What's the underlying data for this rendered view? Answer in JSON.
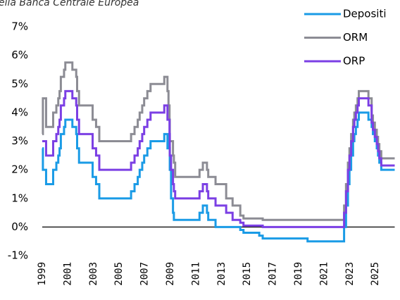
{
  "chart_data": {
    "type": "step",
    "title": "ella Banca Centrale Europea",
    "x": [
      1999.0,
      1999.05,
      1999.3,
      1999.85,
      2000.1,
      2000.25,
      2000.35,
      2000.45,
      2000.7,
      2000.8,
      2001.35,
      2001.65,
      2001.72,
      2001.87,
      2002.93,
      2003.2,
      2003.45,
      2005.93,
      2006.2,
      2006.45,
      2006.6,
      2006.8,
      2006.95,
      2007.2,
      2007.45,
      2008.52,
      2008.77,
      2008.85,
      2008.93,
      2008.95,
      2009.05,
      2009.2,
      2009.27,
      2009.37,
      2011.27,
      2011.53,
      2011.85,
      2011.95,
      2012.52,
      2013.35,
      2013.85,
      2014.45,
      2014.7,
      2015.93,
      2016.2,
      2019.7,
      2022.55,
      2022.7,
      2022.85,
      2022.97,
      2023.1,
      2023.25,
      2023.35,
      2023.47,
      2023.6,
      2023.7,
      2024.45,
      2024.7,
      2024.8,
      2024.95,
      2025.1,
      2025.2,
      2025.3,
      2025.45,
      2026.5
    ],
    "series": [
      {
        "name": "Depositi",
        "color": "#1a9be6",
        "values": [
          2.75,
          2.0,
          1.5,
          2.0,
          2.25,
          2.5,
          2.75,
          3.25,
          3.5,
          3.75,
          3.5,
          3.25,
          2.75,
          2.25,
          1.75,
          1.5,
          1.0,
          1.25,
          1.5,
          1.75,
          2.0,
          2.25,
          2.5,
          2.75,
          3.0,
          3.25,
          2.75,
          3.25,
          2.75,
          2.0,
          1.0,
          0.5,
          0.25,
          0.25,
          0.5,
          0.75,
          0.5,
          0.25,
          0.0,
          0.0,
          0.0,
          -0.1,
          -0.2,
          -0.3,
          -0.4,
          -0.5,
          0.0,
          0.75,
          1.5,
          2.0,
          2.5,
          3.0,
          3.25,
          3.5,
          3.75,
          4.0,
          3.75,
          3.5,
          3.25,
          3.0,
          2.75,
          2.5,
          2.25,
          2.0,
          2.0
        ]
      },
      {
        "name": "ORM",
        "color": "#8c8c94",
        "values": [
          3.25,
          4.5,
          3.5,
          4.0,
          4.25,
          4.5,
          4.75,
          5.25,
          5.5,
          5.75,
          5.5,
          5.25,
          4.75,
          4.25,
          3.75,
          3.5,
          3.0,
          3.25,
          3.5,
          3.75,
          4.0,
          4.25,
          4.5,
          4.75,
          5.0,
          5.25,
          4.75,
          4.25,
          3.75,
          3.0,
          3.0,
          2.5,
          2.25,
          1.75,
          2.0,
          2.25,
          2.0,
          1.75,
          1.5,
          1.0,
          0.75,
          0.4,
          0.3,
          0.3,
          0.25,
          0.25,
          0.75,
          1.5,
          2.25,
          2.75,
          3.25,
          3.75,
          4.0,
          4.25,
          4.5,
          4.75,
          4.5,
          3.9,
          3.65,
          3.4,
          3.15,
          2.9,
          2.65,
          2.4,
          2.4
        ]
      },
      {
        "name": "ORP",
        "color": "#7b3fe4",
        "values": [
          3.0,
          3.0,
          2.5,
          3.0,
          3.25,
          3.5,
          3.75,
          4.25,
          4.5,
          4.75,
          4.5,
          4.25,
          3.75,
          3.25,
          2.75,
          2.5,
          2.0,
          2.25,
          2.5,
          2.75,
          3.0,
          3.25,
          3.5,
          3.75,
          4.0,
          4.25,
          3.75,
          3.75,
          3.25,
          2.5,
          2.0,
          1.5,
          1.25,
          1.0,
          1.25,
          1.5,
          1.25,
          1.0,
          0.75,
          0.5,
          0.25,
          0.15,
          0.05,
          0.05,
          0.0,
          0.0,
          0.5,
          1.25,
          2.0,
          2.5,
          3.0,
          3.5,
          3.75,
          4.0,
          4.25,
          4.5,
          4.25,
          3.65,
          3.4,
          3.15,
          2.9,
          2.65,
          2.4,
          2.15,
          2.15
        ]
      }
    ],
    "xlim": [
      1999,
      2026.5
    ],
    "xticks": [
      1999,
      2001,
      2003,
      2005,
      2007,
      2009,
      2011,
      2013,
      2015,
      2017,
      2019,
      2021,
      2023,
      2025
    ],
    "ylim": [
      -1,
      7
    ],
    "yticks": [
      {
        "value": -1,
        "label": "-1%"
      },
      {
        "value": 0,
        "label": "0%"
      },
      {
        "value": 1,
        "label": "1%"
      },
      {
        "value": 2,
        "label": "2%"
      },
      {
        "value": 3,
        "label": "3%"
      },
      {
        "value": 4,
        "label": "4%"
      },
      {
        "value": 5,
        "label": "5%"
      },
      {
        "value": 6,
        "label": "6%"
      },
      {
        "value": 7,
        "label": "7%"
      }
    ],
    "zero_line": true,
    "legend": "top-right"
  }
}
